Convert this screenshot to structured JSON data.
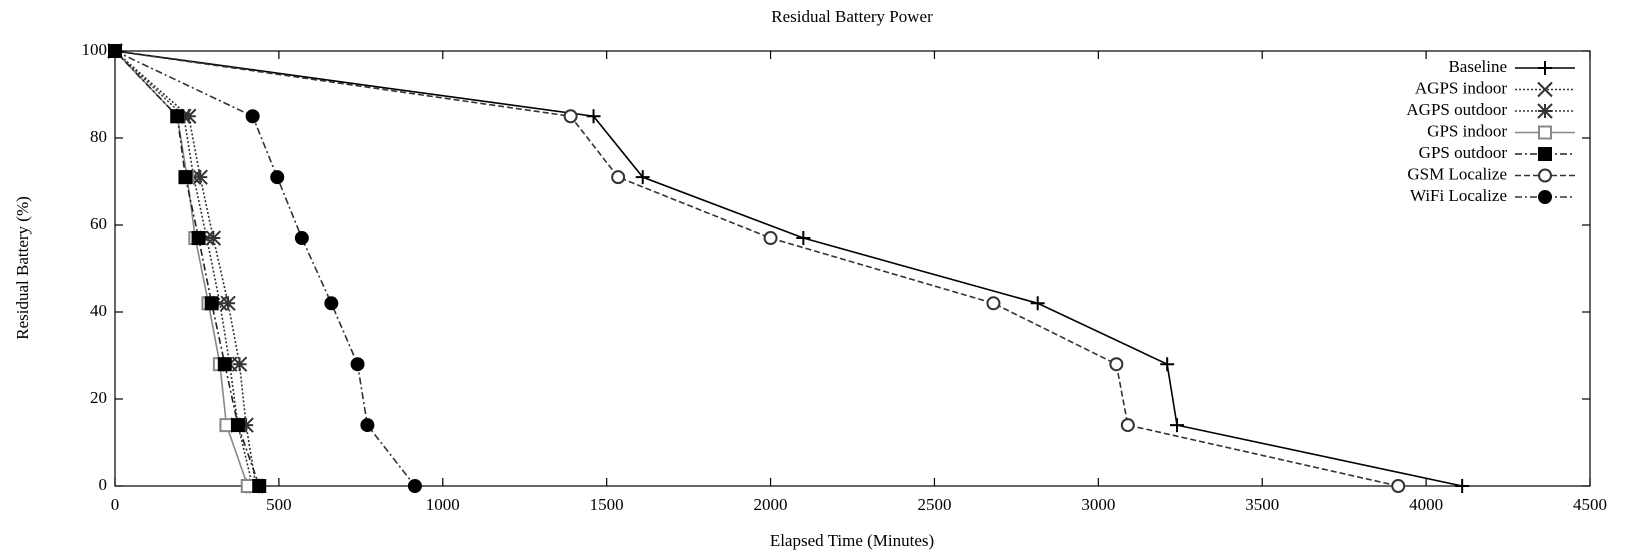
{
  "chart_data": {
    "type": "line",
    "title": "Residual Battery Power",
    "xlabel": "Elapsed Time (Minutes)",
    "ylabel": "Residual Battery (%)",
    "xlim": [
      0,
      4500
    ],
    "xticks": [
      0,
      500,
      1000,
      1500,
      2000,
      2500,
      3000,
      3500,
      4000,
      4500
    ],
    "ylim": [
      0,
      100
    ],
    "yticks": [
      0,
      20,
      40,
      60,
      80,
      100
    ],
    "legend": "upper right",
    "series": [
      {
        "name": "Baseline",
        "color": "#000000",
        "marker": "plus",
        "dash": "solid",
        "x": [
          0,
          1460,
          1610,
          2100,
          2815,
          3210,
          3240,
          4110
        ],
        "values": [
          100,
          85,
          71,
          57,
          42,
          28,
          14,
          0
        ]
      },
      {
        "name": "AGPS indoor",
        "color": "#333333",
        "marker": "x",
        "dash": "dotted",
        "x": [
          0,
          210,
          240,
          280,
          320,
          350,
          375,
          420
        ],
        "values": [
          100,
          85,
          71,
          57,
          42,
          28,
          14,
          0
        ]
      },
      {
        "name": "AGPS outdoor",
        "color": "#333333",
        "marker": "star",
        "dash": "dotted",
        "x": [
          0,
          225,
          260,
          300,
          345,
          380,
          400,
          430
        ],
        "values": [
          100,
          85,
          71,
          57,
          42,
          28,
          14,
          0
        ]
      },
      {
        "name": "GPS indoor",
        "color": "#888888",
        "marker": "square-open",
        "dash": "solid",
        "x": [
          0,
          190,
          220,
          245,
          285,
          320,
          340,
          405
        ],
        "values": [
          100,
          85,
          71,
          57,
          42,
          28,
          14,
          0
        ]
      },
      {
        "name": "GPS outdoor",
        "color": "#222222",
        "marker": "square-filled",
        "dash": "dashdot",
        "x": [
          0,
          190,
          215,
          255,
          295,
          335,
          375,
          440
        ],
        "values": [
          100,
          85,
          71,
          57,
          42,
          28,
          14,
          0
        ]
      },
      {
        "name": "GSM Localize",
        "color": "#333333",
        "marker": "circle-open",
        "dash": "dashed",
        "x": [
          0,
          1390,
          1535,
          2000,
          2680,
          3055,
          3090,
          3915
        ],
        "values": [
          100,
          85,
          71,
          57,
          42,
          28,
          14,
          0
        ]
      },
      {
        "name": "WiFi Localize",
        "color": "#333333",
        "marker": "circle-filled",
        "dash": "dashdot",
        "x": [
          0,
          420,
          495,
          570,
          660,
          740,
          770,
          915
        ],
        "values": [
          100,
          85,
          71,
          57,
          42,
          28,
          14,
          0
        ]
      }
    ]
  }
}
